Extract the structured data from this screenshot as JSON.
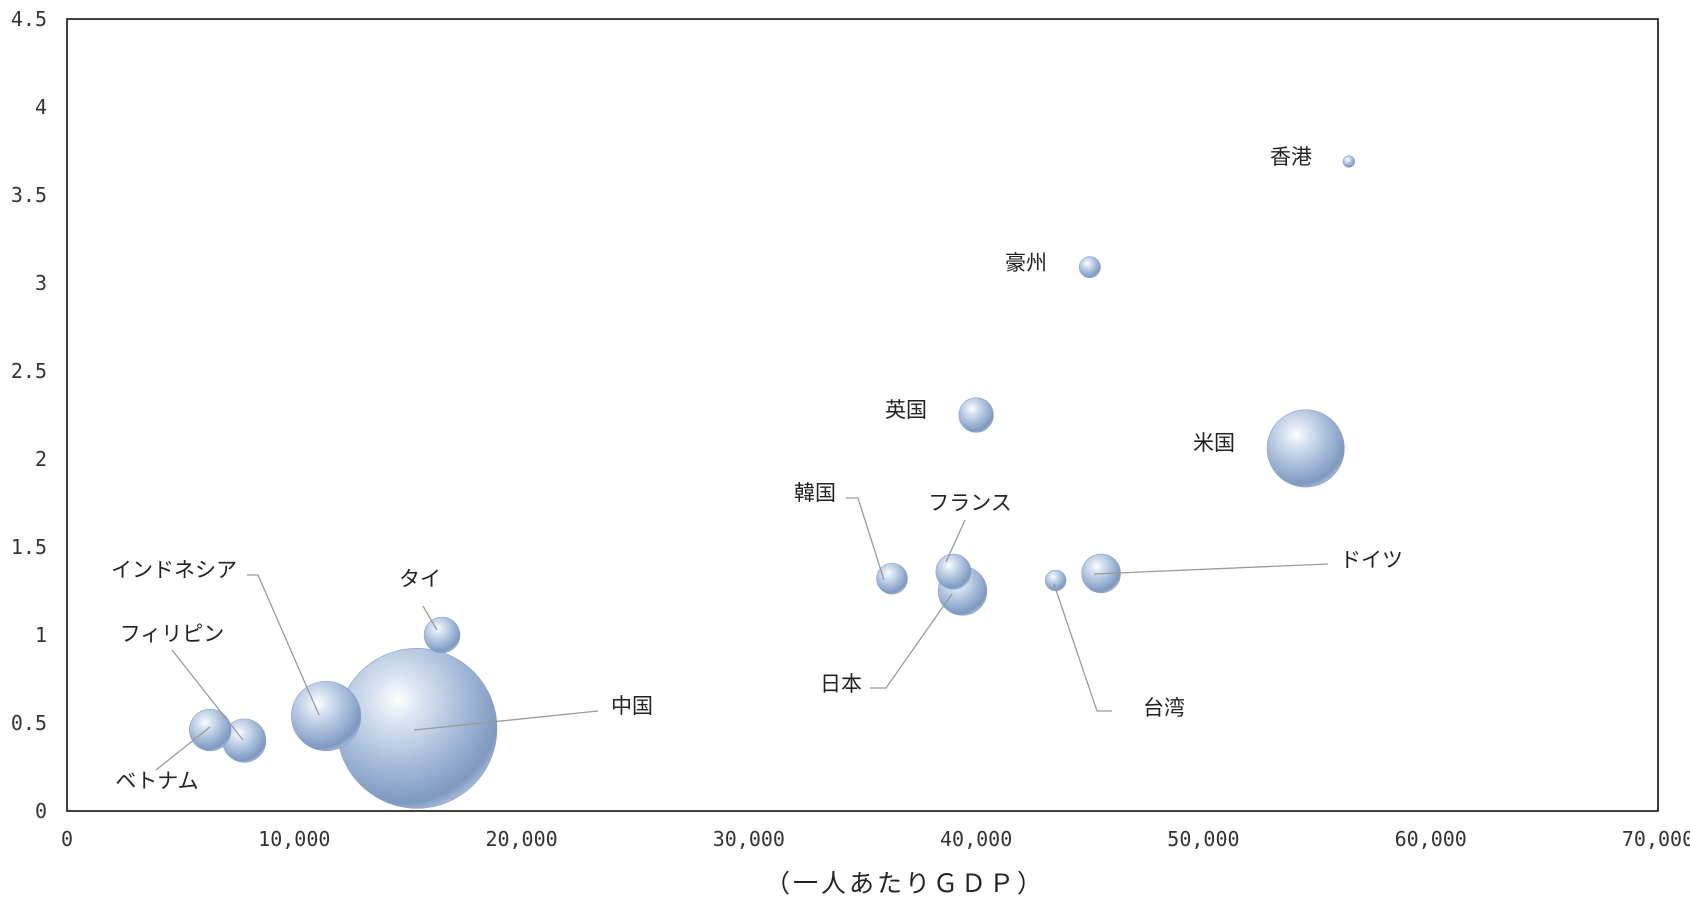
{
  "chart_data": {
    "type": "scatter",
    "subtype": "bubble",
    "title": "",
    "xlabel": "（一人あたりＧＤＰ）",
    "ylabel": "",
    "xlim": [
      0,
      70000
    ],
    "ylim": [
      0,
      4.5
    ],
    "x_ticks": [
      0,
      10000,
      20000,
      30000,
      40000,
      50000,
      60000,
      70000
    ],
    "x_tick_labels": [
      "0",
      "10,000",
      "20,000",
      "30,000",
      "40,000",
      "50,000",
      "60,000",
      "70,000"
    ],
    "y_ticks": [
      0,
      0.5,
      1,
      1.5,
      2,
      2.5,
      3,
      3.5,
      4,
      4.5
    ],
    "y_tick_labels": [
      "0",
      "0.5",
      "1",
      "1.5",
      "2",
      "2.5",
      "3",
      "3.5",
      "4",
      "4.5"
    ],
    "grid": false,
    "legend": "none",
    "bubble_color": "#9fb6d6",
    "points": [
      {
        "label": "香港",
        "x": 56400,
        "y": 3.69,
        "size": 7.3
      },
      {
        "label": "豪州",
        "x": 45000,
        "y": 3.09,
        "size": 24
      },
      {
        "label": "英国",
        "x": 40000,
        "y": 2.25,
        "size": 64
      },
      {
        "label": "米国",
        "x": 54500,
        "y": 2.06,
        "size": 320
      },
      {
        "label": "韓国",
        "x": 36300,
        "y": 1.32,
        "size": 51
      },
      {
        "label": "フランス",
        "x": 39000,
        "y": 1.36,
        "size": 66
      },
      {
        "label": "日本",
        "x": 39400,
        "y": 1.25,
        "size": 127
      },
      {
        "label": "台湾",
        "x": 43500,
        "y": 1.31,
        "size": 23
      },
      {
        "label": "ドイツ",
        "x": 45500,
        "y": 1.35,
        "size": 81
      },
      {
        "label": "タイ",
        "x": 16500,
        "y": 1.0,
        "size": 69
      },
      {
        "label": "インドネシア",
        "x": 11400,
        "y": 0.54,
        "size": 258
      },
      {
        "label": "フィリピン",
        "x": 7800,
        "y": 0.4,
        "size": 101
      },
      {
        "label": "ベトナム",
        "x": 6300,
        "y": 0.46,
        "size": 93
      },
      {
        "label": "中国",
        "x": 15400,
        "y": 0.47,
        "size": 1370
      }
    ]
  }
}
